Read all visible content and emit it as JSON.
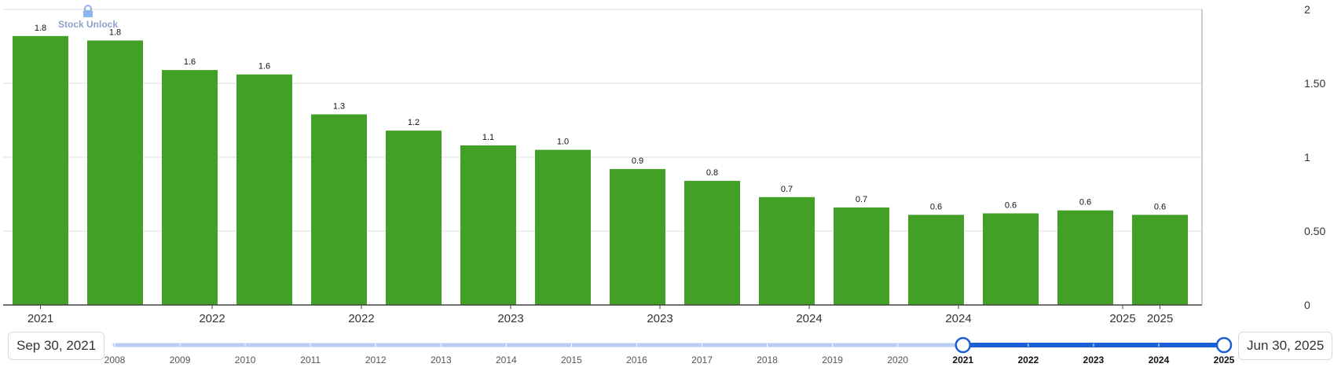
{
  "watermark": {
    "text": "Stock Unlock",
    "icon": "lock-icon"
  },
  "colors": {
    "bar": "#43a026",
    "grid": "#dddddd",
    "axis": "#444444",
    "slider_track": "#b7cdf3",
    "slider_active": "#1a5fd6"
  },
  "chart_data": {
    "type": "bar",
    "values": [
      1.82,
      1.79,
      1.59,
      1.56,
      1.29,
      1.18,
      1.08,
      1.05,
      0.92,
      0.84,
      0.73,
      0.66,
      0.61,
      0.62,
      0.64,
      0.61
    ],
    "data_labels": [
      "1.8",
      "1.8",
      "1.6",
      "1.6",
      "1.3",
      "1.2",
      "1.1",
      "1.0",
      "0.9",
      "0.8",
      "0.7",
      "0.7",
      "0.6",
      "0.6",
      "0.6",
      "0.6"
    ],
    "x_tick_labels": [
      {
        "label": "2021",
        "bar": 0
      },
      {
        "label": "2022",
        "bar": 2.3
      },
      {
        "label": "2022",
        "bar": 4.3
      },
      {
        "label": "2023",
        "bar": 6.3
      },
      {
        "label": "2023",
        "bar": 8.3
      },
      {
        "label": "2024",
        "bar": 10.3
      },
      {
        "label": "2024",
        "bar": 12.3
      },
      {
        "label": "2025",
        "bar": 14.5
      },
      {
        "label": "2025",
        "bar": 15
      }
    ],
    "y_ticks": [
      {
        "value": 0,
        "label": "0"
      },
      {
        "value": 0.5,
        "label": "0.50"
      },
      {
        "value": 1,
        "label": "1"
      },
      {
        "value": 1.5,
        "label": "1.50"
      },
      {
        "value": 2,
        "label": "2"
      }
    ],
    "ylim": [
      0,
      2
    ],
    "y_axis_side": "right",
    "grid": true,
    "legend": "none"
  },
  "range_selector": {
    "start_label": "Sep 30, 2021",
    "end_label": "Jun 30, 2025",
    "years": [
      "2008",
      "2009",
      "2010",
      "2011",
      "2012",
      "2013",
      "2014",
      "2015",
      "2016",
      "2017",
      "2018",
      "2019",
      "2020",
      "2021",
      "2022",
      "2023",
      "2024",
      "2025"
    ],
    "selected_from": "2021",
    "selected_to": "2025"
  }
}
